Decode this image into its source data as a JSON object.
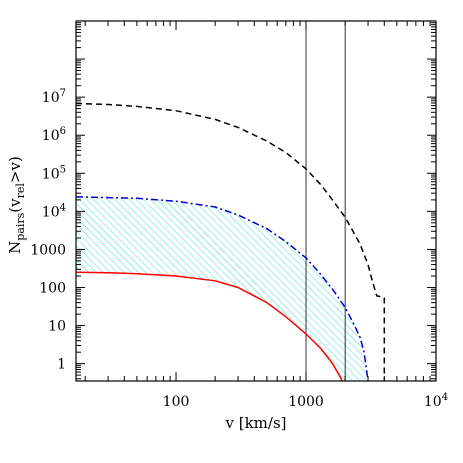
{
  "chart_data": {
    "type": "line",
    "title": "",
    "xlabel": "v [km/s]",
    "ylabel": {
      "main": "N",
      "sub1": "pairs",
      "mid": "(v",
      "sub2": "rel",
      "end": ">v)"
    },
    "xscale": "log",
    "yscale": "log",
    "xlim": [
      17,
      10000
    ],
    "ylim": [
      0.35,
      1000000000
    ],
    "grid": false,
    "legend": "none",
    "x_ticks": [
      {
        "value": 100,
        "label": "100"
      },
      {
        "value": 1000,
        "label": "1000"
      },
      {
        "value": 10000,
        "label": "10",
        "sup": "4"
      }
    ],
    "y_ticks": [
      {
        "value": 1,
        "label": "1"
      },
      {
        "value": 10,
        "label": "10"
      },
      {
        "value": 100,
        "label": "100"
      },
      {
        "value": 1000,
        "label": "1000"
      },
      {
        "value": 10000,
        "label": "10",
        "sup": "4"
      },
      {
        "value": 100000,
        "label": "10",
        "sup": "5"
      },
      {
        "value": 1000000,
        "label": "10",
        "sup": "6"
      },
      {
        "value": 10000000,
        "label": "10",
        "sup": "7"
      }
    ],
    "vertical_lines": [
      1000,
      2000
    ],
    "series": [
      {
        "style": "dashed",
        "color": "#000000",
        "points": [
          [
            17,
            6800000
          ],
          [
            30,
            6400000
          ],
          [
            50,
            5700000
          ],
          [
            100,
            4400000
          ],
          [
            200,
            2600000
          ],
          [
            300,
            1600000
          ],
          [
            500,
            700000
          ],
          [
            700,
            350000
          ],
          [
            1000,
            130000
          ],
          [
            1300,
            50000
          ],
          [
            1600,
            20000
          ],
          [
            2000,
            7000
          ],
          [
            2300,
            3000
          ],
          [
            2600,
            1400
          ],
          [
            3000,
            400
          ],
          [
            3200,
            170
          ],
          [
            3500,
            60
          ],
          [
            4000,
            55
          ],
          [
            4000,
            0.35
          ]
        ]
      },
      {
        "style": "dashdot",
        "color": "#0000cc",
        "points": [
          [
            17,
            24000
          ],
          [
            30,
            23000
          ],
          [
            50,
            22000
          ],
          [
            100,
            18500
          ],
          [
            200,
            13000
          ],
          [
            300,
            8000
          ],
          [
            500,
            3500
          ],
          [
            700,
            1600
          ],
          [
            1000,
            600
          ],
          [
            1300,
            220
          ],
          [
            1600,
            90
          ],
          [
            2000,
            30
          ],
          [
            2300,
            12
          ],
          [
            2600,
            5
          ],
          [
            2800,
            2
          ],
          [
            3000,
            0.35
          ]
        ]
      },
      {
        "style": "solid",
        "color": "#ff0000",
        "points": [
          [
            17,
            250
          ],
          [
            30,
            245
          ],
          [
            50,
            230
          ],
          [
            100,
            200
          ],
          [
            200,
            150
          ],
          [
            300,
            100
          ],
          [
            500,
            40
          ],
          [
            700,
            17
          ],
          [
            1000,
            6
          ],
          [
            1300,
            2.5
          ],
          [
            1600,
            1.0
          ],
          [
            1800,
            0.5
          ],
          [
            1900,
            0.35
          ]
        ]
      }
    ],
    "shaded_region": {
      "between": [
        "dashdot",
        "solid"
      ],
      "fill": "hatched",
      "color": "#40e0d0"
    }
  }
}
